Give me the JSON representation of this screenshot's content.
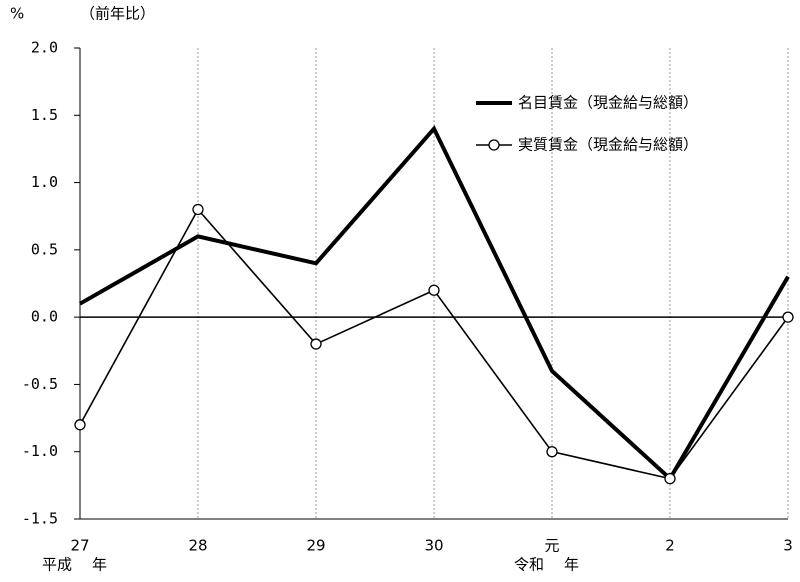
{
  "chart_data": {
    "type": "line",
    "y_label": "%",
    "y_sublabel": "（前年比）",
    "categories": [
      "27",
      "28",
      "29",
      "30",
      "元",
      "2",
      "3"
    ],
    "era_labels": [
      {
        "category": "27",
        "label": "平成",
        "suffix": "年"
      },
      {
        "category": "元",
        "label": "令和",
        "suffix": "年"
      }
    ],
    "series": [
      {
        "name": "名目賃金（現金給与総額）",
        "color": "#000000",
        "marker": "none",
        "values": [
          0.1,
          0.6,
          0.4,
          1.4,
          -0.4,
          -1.2,
          0.3
        ]
      },
      {
        "name": "実質賃金（現金給与総額）",
        "color": "#000000",
        "marker": "circle",
        "values": [
          -0.8,
          0.8,
          -0.2,
          0.2,
          -1.0,
          -1.2,
          0.0
        ]
      }
    ],
    "ylim": [
      -1.5,
      2.0
    ],
    "yticks": [
      {
        "value": 2,
        "label": "2.0"
      },
      1.5,
      {
        "value": 1,
        "label": "1.0"
      },
      0.5,
      {
        "value": 0,
        "label": "0.0"
      },
      -0.5,
      {
        "value": -1,
        "label": "-1.0"
      },
      -1.5
    ],
    "grid": "x-dotted",
    "legend": "top-right"
  }
}
